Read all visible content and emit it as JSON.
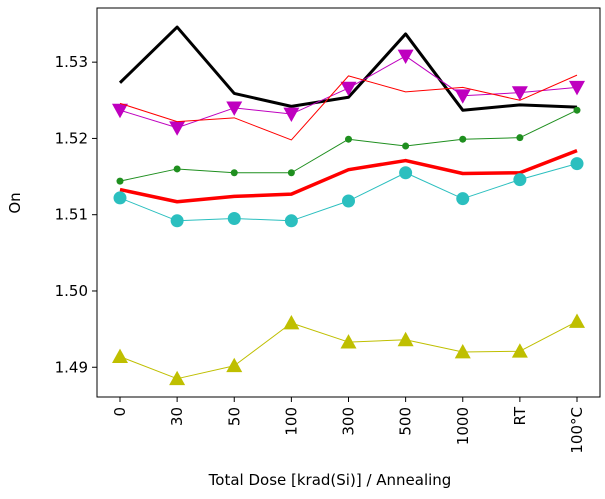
{
  "chart_data": {
    "type": "line",
    "x_label": "Total Dose [krad(Si)] / Annealing",
    "y_label": "On",
    "categories": [
      "0",
      "30",
      "50",
      "100",
      "300",
      "500",
      "1000",
      "RT",
      "100°C"
    ],
    "ylim": [
      1.4861,
      1.5371
    ],
    "yticks": [
      1.49,
      {
        "value": 1.5,
        "label": "1.50"
      },
      1.51,
      1.52,
      1.53
    ],
    "series": [
      {
        "color": "#000000",
        "width": 3,
        "marker": "none",
        "values": [
          1.5273,
          1.5346,
          1.5259,
          1.5242,
          1.5254,
          1.5337,
          1.5237,
          1.5244,
          1.5241
        ]
      },
      {
        "color": "#bf00bf",
        "width": 1,
        "marker": "triangle-down",
        "values": [
          1.5237,
          1.5214,
          1.524,
          1.5232,
          1.5266,
          1.5308,
          1.5256,
          1.526,
          1.5267
        ]
      },
      {
        "color": "#ff0000",
        "width": 1,
        "marker": "none",
        "values": [
          1.5246,
          1.5222,
          1.5227,
          1.5198,
          1.5282,
          1.5261,
          1.5267,
          1.525,
          1.5283
        ]
      },
      {
        "color": "#1f8f1f",
        "width": 1,
        "marker": "dot",
        "values": [
          1.5144,
          1.516,
          1.5155,
          1.5155,
          1.5199,
          1.519,
          1.5199,
          1.5201,
          1.5237
        ]
      },
      {
        "color": "#ff0000",
        "width": 3.5,
        "marker": "none",
        "values": [
          1.5133,
          1.5117,
          1.5124,
          1.5127,
          1.5159,
          1.5171,
          1.5154,
          1.5155,
          1.5184
        ]
      },
      {
        "color": "#2bbfbf",
        "width": 1,
        "marker": "circle",
        "values": [
          1.5122,
          1.5092,
          1.5095,
          1.5092,
          1.5118,
          1.5155,
          1.5121,
          1.5146,
          1.5167
        ]
      },
      {
        "color": "#bfbf00",
        "width": 1,
        "marker": "triangle-up",
        "values": [
          1.4914,
          1.4885,
          1.4902,
          1.4958,
          1.4933,
          1.4936,
          1.492,
          1.4921,
          1.496
        ]
      }
    ]
  }
}
